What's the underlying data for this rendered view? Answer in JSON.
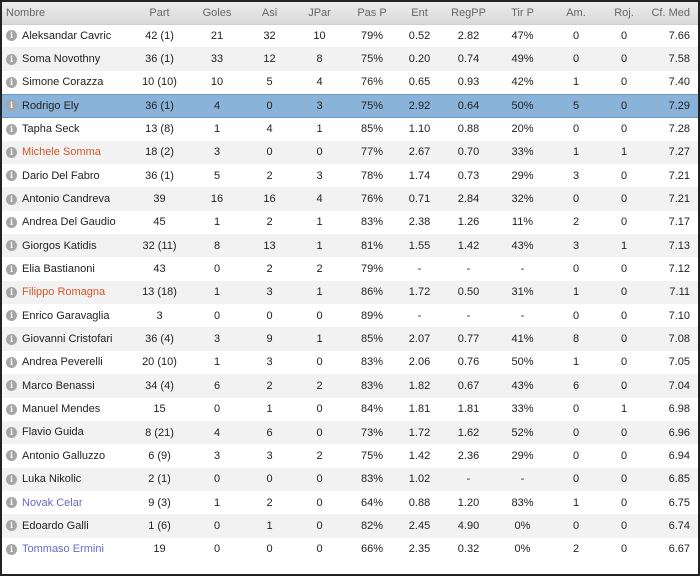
{
  "colors": {
    "selected_row": "#8ab3d9",
    "orange_name": "#d2562a",
    "purple_name": "#6a6ac4",
    "info_icon": "#a5a5a5"
  },
  "columns": [
    "Nombre",
    "Part",
    "Goles",
    "Asi",
    "JPar",
    "Pas P",
    "Ent",
    "RegPP",
    "Tir P",
    "Am.",
    "Roj.",
    "Cf. Med"
  ],
  "players": [
    {
      "name": "Aleksandar Cavric",
      "tone": "default",
      "part": "42 (1)",
      "goles": "21",
      "asi": "32",
      "jpar": "10",
      "pas": "79%",
      "ent": "0.52",
      "regpp": "2.82",
      "tir": "47%",
      "am": "0",
      "roj": "0",
      "cf": "7.66"
    },
    {
      "name": "Soma Novothny",
      "tone": "default",
      "part": "36 (1)",
      "goles": "33",
      "asi": "12",
      "jpar": "8",
      "pas": "75%",
      "ent": "0.20",
      "regpp": "0.74",
      "tir": "49%",
      "am": "0",
      "roj": "0",
      "cf": "7.58"
    },
    {
      "name": "Simone Corazza",
      "tone": "default",
      "part": "10 (10)",
      "goles": "10",
      "asi": "5",
      "jpar": "4",
      "pas": "76%",
      "ent": "0.65",
      "regpp": "0.93",
      "tir": "42%",
      "am": "1",
      "roj": "0",
      "cf": "7.40"
    },
    {
      "name": "Rodrigo Ely",
      "tone": "default",
      "selected": true,
      "part": "36 (1)",
      "goles": "4",
      "asi": "0",
      "jpar": "3",
      "pas": "75%",
      "ent": "2.92",
      "regpp": "0.64",
      "tir": "50%",
      "am": "5",
      "roj": "0",
      "cf": "7.29"
    },
    {
      "name": "Tapha Seck",
      "tone": "default",
      "part": "13 (8)",
      "goles": "1",
      "asi": "4",
      "jpar": "1",
      "pas": "85%",
      "ent": "1.10",
      "regpp": "0.88",
      "tir": "20%",
      "am": "0",
      "roj": "0",
      "cf": "7.28"
    },
    {
      "name": "Michele Somma",
      "tone": "orange",
      "part": "18 (2)",
      "goles": "3",
      "asi": "0",
      "jpar": "0",
      "pas": "77%",
      "ent": "2.67",
      "regpp": "0.70",
      "tir": "33%",
      "am": "1",
      "roj": "1",
      "cf": "7.27"
    },
    {
      "name": "Dario Del Fabro",
      "tone": "default",
      "part": "36 (1)",
      "goles": "5",
      "asi": "2",
      "jpar": "3",
      "pas": "78%",
      "ent": "1.74",
      "regpp": "0.73",
      "tir": "29%",
      "am": "3",
      "roj": "0",
      "cf": "7.21"
    },
    {
      "name": "Antonio Candreva",
      "tone": "default",
      "part": "39",
      "goles": "16",
      "asi": "16",
      "jpar": "4",
      "pas": "76%",
      "ent": "0.71",
      "regpp": "2.84",
      "tir": "32%",
      "am": "0",
      "roj": "0",
      "cf": "7.21"
    },
    {
      "name": "Andrea Del Gaudio",
      "tone": "default",
      "part": "45",
      "goles": "1",
      "asi": "2",
      "jpar": "1",
      "pas": "83%",
      "ent": "2.38",
      "regpp": "1.26",
      "tir": "11%",
      "am": "2",
      "roj": "0",
      "cf": "7.17"
    },
    {
      "name": "Giorgos Katidis",
      "tone": "default",
      "part": "32 (11)",
      "goles": "8",
      "asi": "13",
      "jpar": "1",
      "pas": "81%",
      "ent": "1.55",
      "regpp": "1.42",
      "tir": "43%",
      "am": "3",
      "roj": "1",
      "cf": "7.13"
    },
    {
      "name": "Elia Bastianoni",
      "tone": "default",
      "part": "43",
      "goles": "0",
      "asi": "2",
      "jpar": "2",
      "pas": "79%",
      "ent": "-",
      "regpp": "-",
      "tir": "-",
      "am": "0",
      "roj": "0",
      "cf": "7.12"
    },
    {
      "name": "Filippo Romagna",
      "tone": "orange",
      "part": "13 (18)",
      "goles": "1",
      "asi": "3",
      "jpar": "1",
      "pas": "86%",
      "ent": "1.72",
      "regpp": "0.50",
      "tir": "31%",
      "am": "1",
      "roj": "0",
      "cf": "7.11"
    },
    {
      "name": "Enrico Garavaglia",
      "tone": "default",
      "part": "3",
      "goles": "0",
      "asi": "0",
      "jpar": "0",
      "pas": "89%",
      "ent": "-",
      "regpp": "-",
      "tir": "-",
      "am": "0",
      "roj": "0",
      "cf": "7.10"
    },
    {
      "name": "Giovanni Cristofari",
      "tone": "default",
      "part": "36 (4)",
      "goles": "3",
      "asi": "9",
      "jpar": "1",
      "pas": "85%",
      "ent": "2.07",
      "regpp": "0.77",
      "tir": "41%",
      "am": "8",
      "roj": "0",
      "cf": "7.08"
    },
    {
      "name": "Andrea Peverelli",
      "tone": "default",
      "part": "20 (10)",
      "goles": "1",
      "asi": "3",
      "jpar": "0",
      "pas": "83%",
      "ent": "2.06",
      "regpp": "0.76",
      "tir": "50%",
      "am": "1",
      "roj": "0",
      "cf": "7.05"
    },
    {
      "name": "Marco Benassi",
      "tone": "default",
      "part": "34 (4)",
      "goles": "6",
      "asi": "2",
      "jpar": "2",
      "pas": "83%",
      "ent": "1.82",
      "regpp": "0.67",
      "tir": "43%",
      "am": "6",
      "roj": "0",
      "cf": "7.04"
    },
    {
      "name": "Manuel Mendes",
      "tone": "default",
      "part": "15",
      "goles": "0",
      "asi": "1",
      "jpar": "0",
      "pas": "84%",
      "ent": "1.81",
      "regpp": "1.81",
      "tir": "33%",
      "am": "0",
      "roj": "1",
      "cf": "6.98"
    },
    {
      "name": "Flavio Guida",
      "tone": "default",
      "part": "8 (21)",
      "goles": "4",
      "asi": "6",
      "jpar": "0",
      "pas": "73%",
      "ent": "1.72",
      "regpp": "1.62",
      "tir": "52%",
      "am": "0",
      "roj": "0",
      "cf": "6.96"
    },
    {
      "name": "Antonio Galluzzo",
      "tone": "default",
      "part": "6 (9)",
      "goles": "3",
      "asi": "3",
      "jpar": "2",
      "pas": "75%",
      "ent": "1.42",
      "regpp": "2.36",
      "tir": "29%",
      "am": "0",
      "roj": "0",
      "cf": "6.94"
    },
    {
      "name": "Luka Nikolic",
      "tone": "default",
      "part": "2 (1)",
      "goles": "0",
      "asi": "0",
      "jpar": "0",
      "pas": "83%",
      "ent": "1.02",
      "regpp": "-",
      "tir": "-",
      "am": "0",
      "roj": "0",
      "cf": "6.85"
    },
    {
      "name": "Novak Celar",
      "tone": "purple",
      "part": "9 (3)",
      "goles": "1",
      "asi": "2",
      "jpar": "0",
      "pas": "64%",
      "ent": "0.88",
      "regpp": "1.20",
      "tir": "83%",
      "am": "1",
      "roj": "0",
      "cf": "6.75"
    },
    {
      "name": "Edoardo Galli",
      "tone": "default",
      "part": "1 (6)",
      "goles": "0",
      "asi": "1",
      "jpar": "0",
      "pas": "82%",
      "ent": "2.45",
      "regpp": "4.90",
      "tir": "0%",
      "am": "0",
      "roj": "0",
      "cf": "6.74"
    },
    {
      "name": "Tommaso Ermini",
      "tone": "purple",
      "part": "19",
      "goles": "0",
      "asi": "0",
      "jpar": "0",
      "pas": "66%",
      "ent": "2.35",
      "regpp": "0.32",
      "tir": "0%",
      "am": "2",
      "roj": "0",
      "cf": "6.67"
    }
  ]
}
